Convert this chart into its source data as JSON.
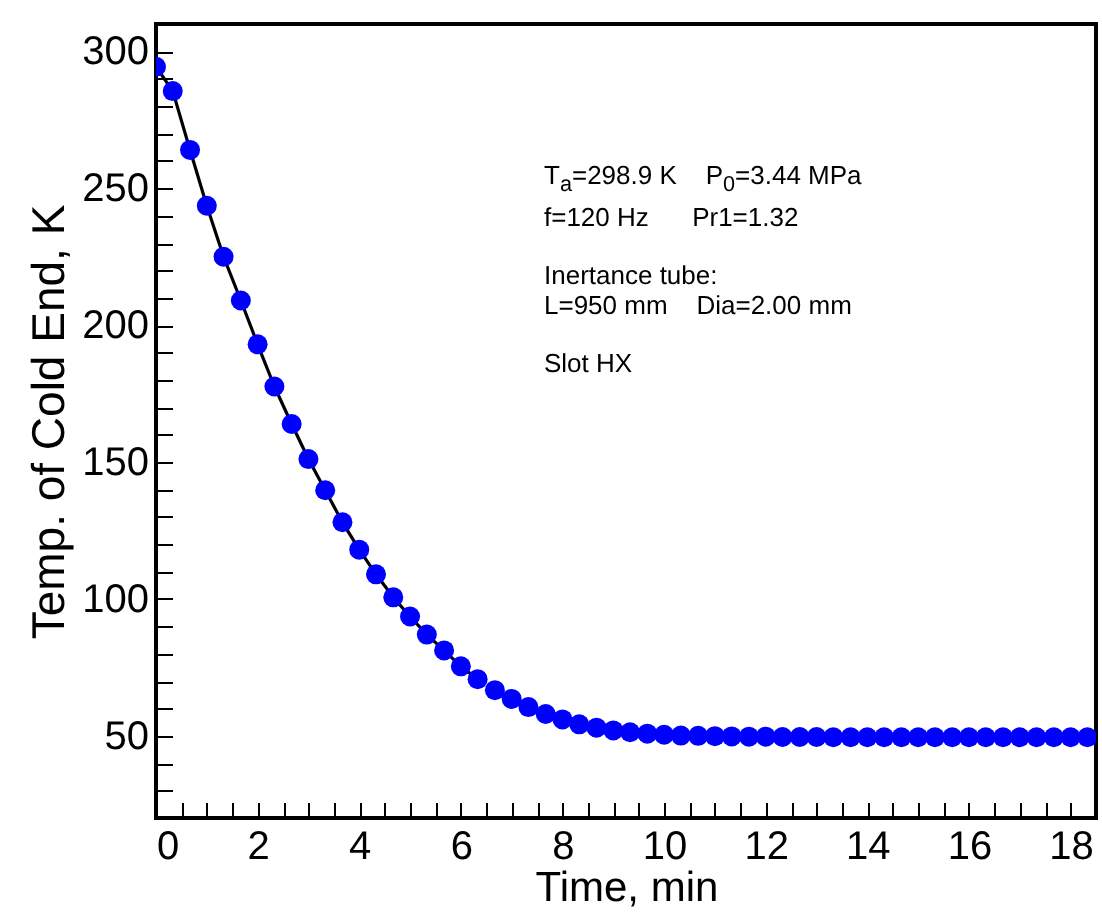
{
  "chart_data": {
    "type": "scatter",
    "xlabel": "Time, min",
    "ylabel": "Temp. of Cold End, K",
    "xlim": [
      0,
      18.5
    ],
    "ylim": [
      20,
      310
    ],
    "xticks": [
      0,
      {
        "value": 0.5,
        "label": null
      },
      {
        "value": 1,
        "label": null
      },
      {
        "value": 1.5,
        "label": null
      },
      2,
      {
        "value": 2.5,
        "label": null
      },
      {
        "value": 3,
        "label": null
      },
      {
        "value": 3.5,
        "label": null
      },
      4,
      {
        "value": 4.5,
        "label": null
      },
      {
        "value": 5,
        "label": null
      },
      {
        "value": 5.5,
        "label": null
      },
      6,
      {
        "value": 6.5,
        "label": null
      },
      {
        "value": 7,
        "label": null
      },
      {
        "value": 7.5,
        "label": null
      },
      8,
      {
        "value": 8.5,
        "label": null
      },
      {
        "value": 9,
        "label": null
      },
      {
        "value": 9.5,
        "label": null
      },
      10,
      {
        "value": 10.5,
        "label": null
      },
      {
        "value": 11,
        "label": null
      },
      {
        "value": 11.5,
        "label": null
      },
      12,
      {
        "value": 12.5,
        "label": null
      },
      {
        "value": 13,
        "label": null
      },
      {
        "value": 13.5,
        "label": null
      },
      14,
      {
        "value": 14.5,
        "label": null
      },
      {
        "value": 15,
        "label": null
      },
      {
        "value": 15.5,
        "label": null
      },
      16,
      {
        "value": 16.5,
        "label": null
      },
      {
        "value": 17,
        "label": null
      },
      {
        "value": 17.5,
        "label": null
      },
      18
    ],
    "yticks": [
      {
        "value": 30,
        "label": null
      },
      {
        "value": 40,
        "label": null
      },
      50,
      {
        "value": 60,
        "label": null
      },
      {
        "value": 70,
        "label": null
      },
      {
        "value": 80,
        "label": null
      },
      {
        "value": 90,
        "label": null
      },
      100,
      {
        "value": 110,
        "label": null
      },
      {
        "value": 120,
        "label": null
      },
      {
        "value": 130,
        "label": null
      },
      {
        "value": 140,
        "label": null
      },
      150,
      {
        "value": 160,
        "label": null
      },
      {
        "value": 170,
        "label": null
      },
      {
        "value": 180,
        "label": null
      },
      {
        "value": 190,
        "label": null
      },
      200,
      {
        "value": 210,
        "label": null
      },
      {
        "value": 220,
        "label": null
      },
      {
        "value": 230,
        "label": null
      },
      {
        "value": 240,
        "label": null
      },
      250,
      {
        "value": 260,
        "label": null
      },
      {
        "value": 270,
        "label": null
      },
      {
        "value": 280,
        "label": null
      },
      {
        "value": 290,
        "label": null
      },
      300
    ],
    "grid": false,
    "legend": false,
    "x": [
      0,
      0.33,
      0.67,
      1,
      1.33,
      1.67,
      2,
      2.33,
      2.67,
      3,
      3.33,
      3.67,
      4,
      4.33,
      4.67,
      5,
      5.33,
      5.67,
      6,
      6.33,
      6.67,
      7,
      7.33,
      7.67,
      8,
      8.33,
      8.67,
      9,
      9.33,
      9.67,
      10,
      10.33,
      10.67,
      11,
      11.33,
      11.67,
      12,
      12.33,
      12.67,
      13,
      13.33,
      13.67,
      14,
      14.33,
      14.67,
      15,
      15.33,
      15.67,
      16,
      16.33,
      16.67,
      17,
      17.33,
      17.67,
      18,
      18.33
    ],
    "series": [
      {
        "type": "line",
        "color": "#000000",
        "line_style": "solid",
        "marker": "none",
        "values": [
          294.4,
          285.5,
          264,
          243.6,
          225,
          209,
          193,
          177.6,
          163.9,
          151.1,
          139.7,
          128,
          118,
          109,
          100.6,
          93.6,
          87,
          81.2,
          75.4,
          70.7,
          null,
          null,
          null,
          null,
          null,
          null,
          null,
          null,
          null,
          null,
          null,
          null,
          null,
          null,
          null,
          null,
          null,
          null,
          null,
          null,
          null,
          null,
          null,
          null,
          null,
          null,
          null,
          null,
          null,
          null,
          null,
          null,
          null,
          null,
          null,
          null
        ]
      },
      {
        "type": "scatter",
        "color": "#0000ff",
        "marker": "circle",
        "values": [
          294.4,
          285.5,
          264,
          243.6,
          225,
          209,
          193,
          177.6,
          163.9,
          151.1,
          139.7,
          128,
          118,
          109,
          100.6,
          93.6,
          87,
          81.2,
          75.4,
          70.7,
          66.7,
          63.5,
          60.5,
          58,
          56,
          54.2,
          53,
          52,
          51.3,
          50.8,
          50.4,
          50.1,
          50,
          49.9,
          49.8,
          49.7,
          49.7,
          49.6,
          49.6,
          49.6,
          49.5,
          49.5,
          49.5,
          49.5,
          49.5,
          49.5,
          49.5,
          49.5,
          49.5,
          49.5,
          49.5,
          49.5,
          49.5,
          49.5,
          49.5,
          49.5
        ]
      }
    ],
    "annotations": [
      "T$_{a}$=298.9 K    P$_{0}$=3.44 MPa",
      "f=120 Hz      Pr1=1.32",
      "Inertance tube:",
      "L=950 mm    Dia=2.00 mm",
      "Slot HX"
    ]
  }
}
